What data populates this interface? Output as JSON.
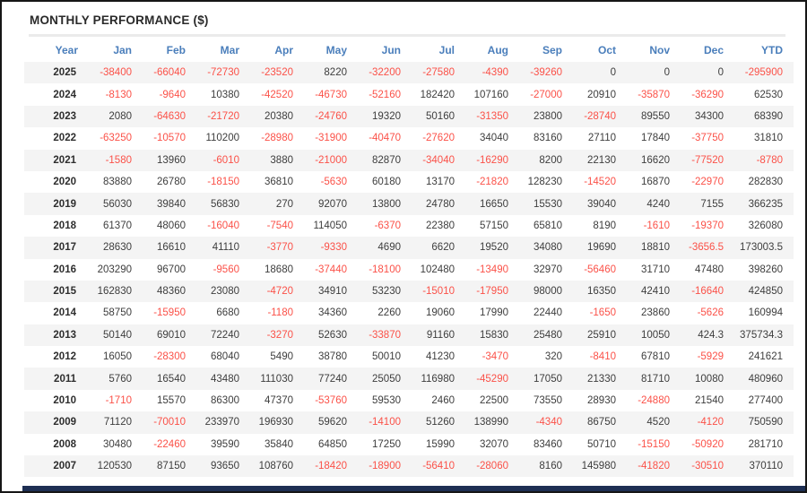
{
  "title": "MONTHLY PERFORMANCE ($)",
  "colors": {
    "header_text": "#4a7ebb",
    "negative_value": "#fb5148",
    "positive_value": "#3d3d3d",
    "row_stripe": "#f4f4f4",
    "title_text": "#2a2a2a",
    "bottom_bar": "#1e2f53"
  },
  "table": {
    "columns": [
      "Year",
      "Jan",
      "Feb",
      "Mar",
      "Apr",
      "May",
      "Jun",
      "Jul",
      "Aug",
      "Sep",
      "Oct",
      "Nov",
      "Dec",
      "YTD"
    ],
    "rows": [
      [
        "2025",
        "-38400",
        "-66040",
        "-72730",
        "-23520",
        "8220",
        "-32200",
        "-27580",
        "-4390",
        "-39260",
        "0",
        "0",
        "0",
        "-295900"
      ],
      [
        "2024",
        "-8130",
        "-9640",
        "10380",
        "-42520",
        "-46730",
        "-52160",
        "182420",
        "107160",
        "-27000",
        "20910",
        "-35870",
        "-36290",
        "62530"
      ],
      [
        "2023",
        "2080",
        "-64630",
        "-21720",
        "20380",
        "-24760",
        "19320",
        "50160",
        "-31350",
        "23800",
        "-28740",
        "89550",
        "34300",
        "68390"
      ],
      [
        "2022",
        "-63250",
        "-10570",
        "110200",
        "-28980",
        "-31900",
        "-40470",
        "-27620",
        "34040",
        "83160",
        "27110",
        "17840",
        "-37750",
        "31810"
      ],
      [
        "2021",
        "-1580",
        "13960",
        "-6010",
        "3880",
        "-21000",
        "82870",
        "-34040",
        "-16290",
        "8200",
        "22130",
        "16620",
        "-77520",
        "-8780"
      ],
      [
        "2020",
        "83880",
        "26780",
        "-18150",
        "36810",
        "-5630",
        "60180",
        "13170",
        "-21820",
        "128230",
        "-14520",
        "16870",
        "-22970",
        "282830"
      ],
      [
        "2019",
        "56030",
        "39840",
        "56830",
        "270",
        "92070",
        "13800",
        "24780",
        "16650",
        "15530",
        "39040",
        "4240",
        "7155",
        "366235"
      ],
      [
        "2018",
        "61370",
        "48060",
        "-16040",
        "-7540",
        "114050",
        "-6370",
        "22380",
        "57150",
        "65810",
        "8190",
        "-1610",
        "-19370",
        "326080"
      ],
      [
        "2017",
        "28630",
        "16610",
        "41110",
        "-3770",
        "-9330",
        "4690",
        "6620",
        "19520",
        "34080",
        "19690",
        "18810",
        "-3656.5",
        "173003.5"
      ],
      [
        "2016",
        "203290",
        "96700",
        "-9560",
        "18680",
        "-37440",
        "-18100",
        "102480",
        "-13490",
        "32970",
        "-56460",
        "31710",
        "47480",
        "398260"
      ],
      [
        "2015",
        "162830",
        "48360",
        "23080",
        "-4720",
        "34910",
        "53230",
        "-15010",
        "-17950",
        "98000",
        "16350",
        "42410",
        "-16640",
        "424850"
      ],
      [
        "2014",
        "58750",
        "-15950",
        "6680",
        "-1180",
        "34360",
        "2260",
        "19060",
        "17990",
        "22440",
        "-1650",
        "23860",
        "-5626",
        "160994"
      ],
      [
        "2013",
        "50140",
        "69010",
        "72240",
        "-3270",
        "52630",
        "-33870",
        "91160",
        "15830",
        "25480",
        "25910",
        "10050",
        "424.3",
        "375734.3"
      ],
      [
        "2012",
        "16050",
        "-28300",
        "68040",
        "5490",
        "38780",
        "50010",
        "41230",
        "-3470",
        "320",
        "-8410",
        "67810",
        "-5929",
        "241621"
      ],
      [
        "2011",
        "5760",
        "16540",
        "43480",
        "111030",
        "77240",
        "25050",
        "116980",
        "-45290",
        "17050",
        "21330",
        "81710",
        "10080",
        "480960"
      ],
      [
        "2010",
        "-1710",
        "15570",
        "86300",
        "47370",
        "-53760",
        "59530",
        "2460",
        "22500",
        "73550",
        "28930",
        "-24880",
        "21540",
        "277400"
      ],
      [
        "2009",
        "71120",
        "-70010",
        "233970",
        "196930",
        "59620",
        "-14100",
        "51260",
        "138990",
        "-4340",
        "86750",
        "4520",
        "-4120",
        "750590"
      ],
      [
        "2008",
        "30480",
        "-22460",
        "39590",
        "35840",
        "64850",
        "17250",
        "15990",
        "32070",
        "83460",
        "50710",
        "-15150",
        "-50920",
        "281710"
      ],
      [
        "2007",
        "120530",
        "87150",
        "93650",
        "108760",
        "-18420",
        "-18900",
        "-56410",
        "-28060",
        "8160",
        "145980",
        "-41820",
        "-30510",
        "370110"
      ]
    ]
  }
}
